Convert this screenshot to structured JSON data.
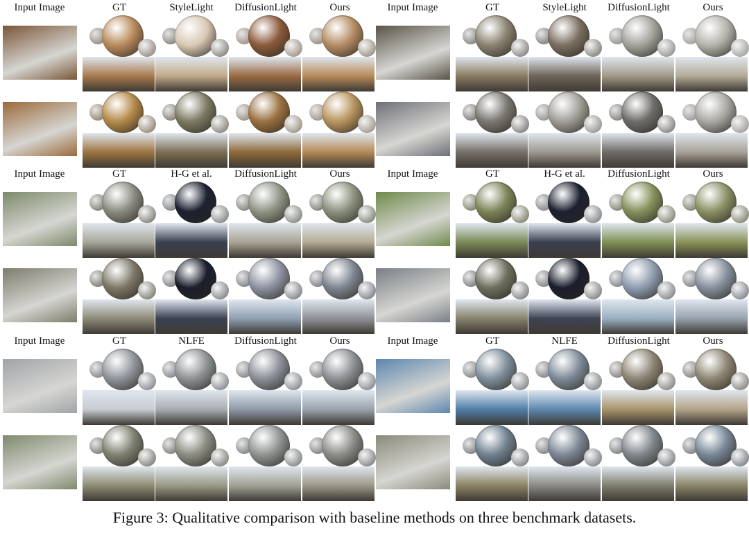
{
  "figure": {
    "caption": "Figure 3: Qualitative comparison with baseline methods on three benchmark datasets."
  },
  "panels": [
    {
      "headers": [
        "Input Image",
        "GT",
        "StyleLight",
        "DiffusionLight",
        "Ours"
      ],
      "rows": [
        {
          "input": "#7a5638",
          "methods": [
            {
              "sphere": "#b98a5c",
              "small": "#9a9289",
              "pano": "#a87a4d"
            },
            {
              "sphere": "#d9c8b4",
              "small": "#8f8a84",
              "pano": "#c2aa8a"
            },
            {
              "sphere": "#8a5a3a",
              "small": "#a4998d",
              "pano": "#9b6b43"
            },
            {
              "sphere": "#b48c63",
              "small": "#9f958a",
              "pano": "#b88a58"
            }
          ]
        },
        {
          "input": "#9a6a3a",
          "methods": [
            {
              "sphere": "#b48a4a",
              "small": "#9b8c7b",
              "pano": "#9d7440"
            },
            {
              "sphere": "#7c7a62",
              "small": "#8e8a80",
              "pano": "#7a6e52"
            },
            {
              "sphere": "#9a7040",
              "small": "#a3988b",
              "pano": "#8f6a3a"
            },
            {
              "sphere": "#b7945f",
              "small": "#a69b8e",
              "pano": "#b58a56"
            }
          ]
        }
      ]
    },
    {
      "headers": [
        "Input Image",
        "GT",
        "StyleLight",
        "DiffusionLight",
        "Ours"
      ],
      "rows": [
        {
          "input": "#5a5448",
          "methods": [
            {
              "sphere": "#8a8270",
              "small": "#8d8b86",
              "pano": "#8a7c62"
            },
            {
              "sphere": "#7a6e60",
              "small": "#8b8883",
              "pano": "#6f6558"
            },
            {
              "sphere": "#a3a29b",
              "small": "#9b9a96",
              "pano": "#a39a88"
            },
            {
              "sphere": "#b5b3ac",
              "small": "#a6a5a1",
              "pano": "#b3ab98"
            }
          ]
        },
        {
          "input": "#6f7078",
          "methods": [
            {
              "sphere": "#7a7670",
              "small": "#878582",
              "pano": "#77706a"
            },
            {
              "sphere": "#a19e98",
              "small": "#9b9995",
              "pano": "#9e9890"
            },
            {
              "sphere": "#6e6c6a",
              "small": "#8a8886",
              "pano": "#6f6a66"
            },
            {
              "sphere": "#aaa8a3",
              "small": "#a4a29f",
              "pano": "#a7a197"
            }
          ]
        }
      ]
    },
    {
      "headers": [
        "Input Image",
        "GT",
        "H-G et al.",
        "DiffusionLight",
        "Ours"
      ],
      "rows": [
        {
          "input": "#7c8a6a",
          "methods": [
            {
              "sphere": "#8a8b80",
              "small": "#86887f",
              "pano": "#a8a89a"
            },
            {
              "sphere": "#1c2030",
              "small": "#8a8c90",
              "pano": "#3a4050"
            },
            {
              "sphere": "#8f9486",
              "small": "#8a8c84",
              "pano": "#a9a393"
            },
            {
              "sphere": "#8c917f",
              "small": "#868a7e",
              "pano": "#b5ab94"
            }
          ]
        },
        {
          "input": "#7d7c6c",
          "methods": [
            {
              "sphere": "#7c7766",
              "small": "#84847c",
              "pano": "#8e8a78"
            },
            {
              "sphere": "#1a1e2c",
              "small": "#888a8e",
              "pano": "#3c4252"
            },
            {
              "sphere": "#8d92a0",
              "small": "#878a8e",
              "pano": "#8fa0b2"
            },
            {
              "sphere": "#7e8590",
              "small": "#858890",
              "pano": "#8e9296"
            }
          ]
        }
      ]
    },
    {
      "headers": [
        "Input Image",
        "GT",
        "H-G et al.",
        "DiffusionLight",
        "Ours"
      ],
      "rows": [
        {
          "input": "#6e8a4a",
          "methods": [
            {
              "sphere": "#7c8458",
              "small": "#868a74",
              "pano": "#7a8a56"
            },
            {
              "sphere": "#1c2030",
              "small": "#8a8c90",
              "pano": "#3a4050"
            },
            {
              "sphere": "#84905c",
              "small": "#8a8d7c",
              "pano": "#7f9055"
            },
            {
              "sphere": "#8a9064",
              "small": "#888b78",
              "pano": "#8a9258"
            }
          ]
        },
        {
          "input": "#7a7f86",
          "methods": [
            {
              "sphere": "#6e6e5e",
              "small": "#87888a",
              "pano": "#86826c"
            },
            {
              "sphere": "#1a1e2c",
              "small": "#888a8e",
              "pano": "#3e4454"
            },
            {
              "sphere": "#8e9cae",
              "small": "#898d92",
              "pano": "#9ab0c2"
            },
            {
              "sphere": "#86909c",
              "small": "#878a90",
              "pano": "#96a2ae"
            }
          ]
        }
      ]
    },
    {
      "headers": [
        "Input Image",
        "GT",
        "NLFE",
        "DiffusionLight",
        "Ours"
      ],
      "rows": [
        {
          "input": "#a0a4a8",
          "methods": [
            {
              "sphere": "#8f949a",
              "small": "#8d9096",
              "pano": "#c8ccd2"
            },
            {
              "sphere": "#8e9294",
              "small": "#8b8f94",
              "pano": "#a8aeb2"
            },
            {
              "sphere": "#8a8e96",
              "small": "#8c8f94",
              "pano": "#8e9aa8"
            },
            {
              "sphere": "#8c9094",
              "small": "#8c8f93",
              "pano": "#9aa4ae"
            }
          ]
        },
        {
          "input": "#7e8a6c",
          "methods": [
            {
              "sphere": "#7e8070",
              "small": "#86877f",
              "pano": "#8e8c74"
            },
            {
              "sphere": "#8a8c82",
              "small": "#888a84",
              "pano": "#9a9886"
            },
            {
              "sphere": "#8e9290",
              "small": "#898c8a",
              "pano": "#a2a294"
            },
            {
              "sphere": "#8a8c88",
              "small": "#888a88",
              "pano": "#9c9888"
            }
          ]
        }
      ]
    },
    {
      "headers": [
        "Input Image",
        "GT",
        "NLFE",
        "DiffusionLight",
        "Ours"
      ],
      "rows": [
        {
          "input": "#5d86b0",
          "methods": [
            {
              "sphere": "#7f8e9a",
              "small": "#8a8e92",
              "pano": "#4f7ea8"
            },
            {
              "sphere": "#7e8a98",
              "small": "#898d91",
              "pano": "#5d88b0"
            },
            {
              "sphere": "#8c8474",
              "small": "#8d8b86",
              "pano": "#a8946a"
            },
            {
              "sphere": "#8e8674",
              "small": "#8c8a86",
              "pano": "#b4a48a"
            }
          ]
        },
        {
          "input": "#8a8a7a",
          "methods": [
            {
              "sphere": "#6f808f",
              "small": "#86898d",
              "pano": "#8b8364"
            },
            {
              "sphere": "#7c8694",
              "small": "#878b90",
              "pano": "#8a8a86"
            },
            {
              "sphere": "#80868c",
              "small": "#868a8e",
              "pano": "#7f7e6e"
            },
            {
              "sphere": "#778696",
              "small": "#85898e",
              "pano": "#8a8468"
            }
          ]
        }
      ]
    }
  ]
}
